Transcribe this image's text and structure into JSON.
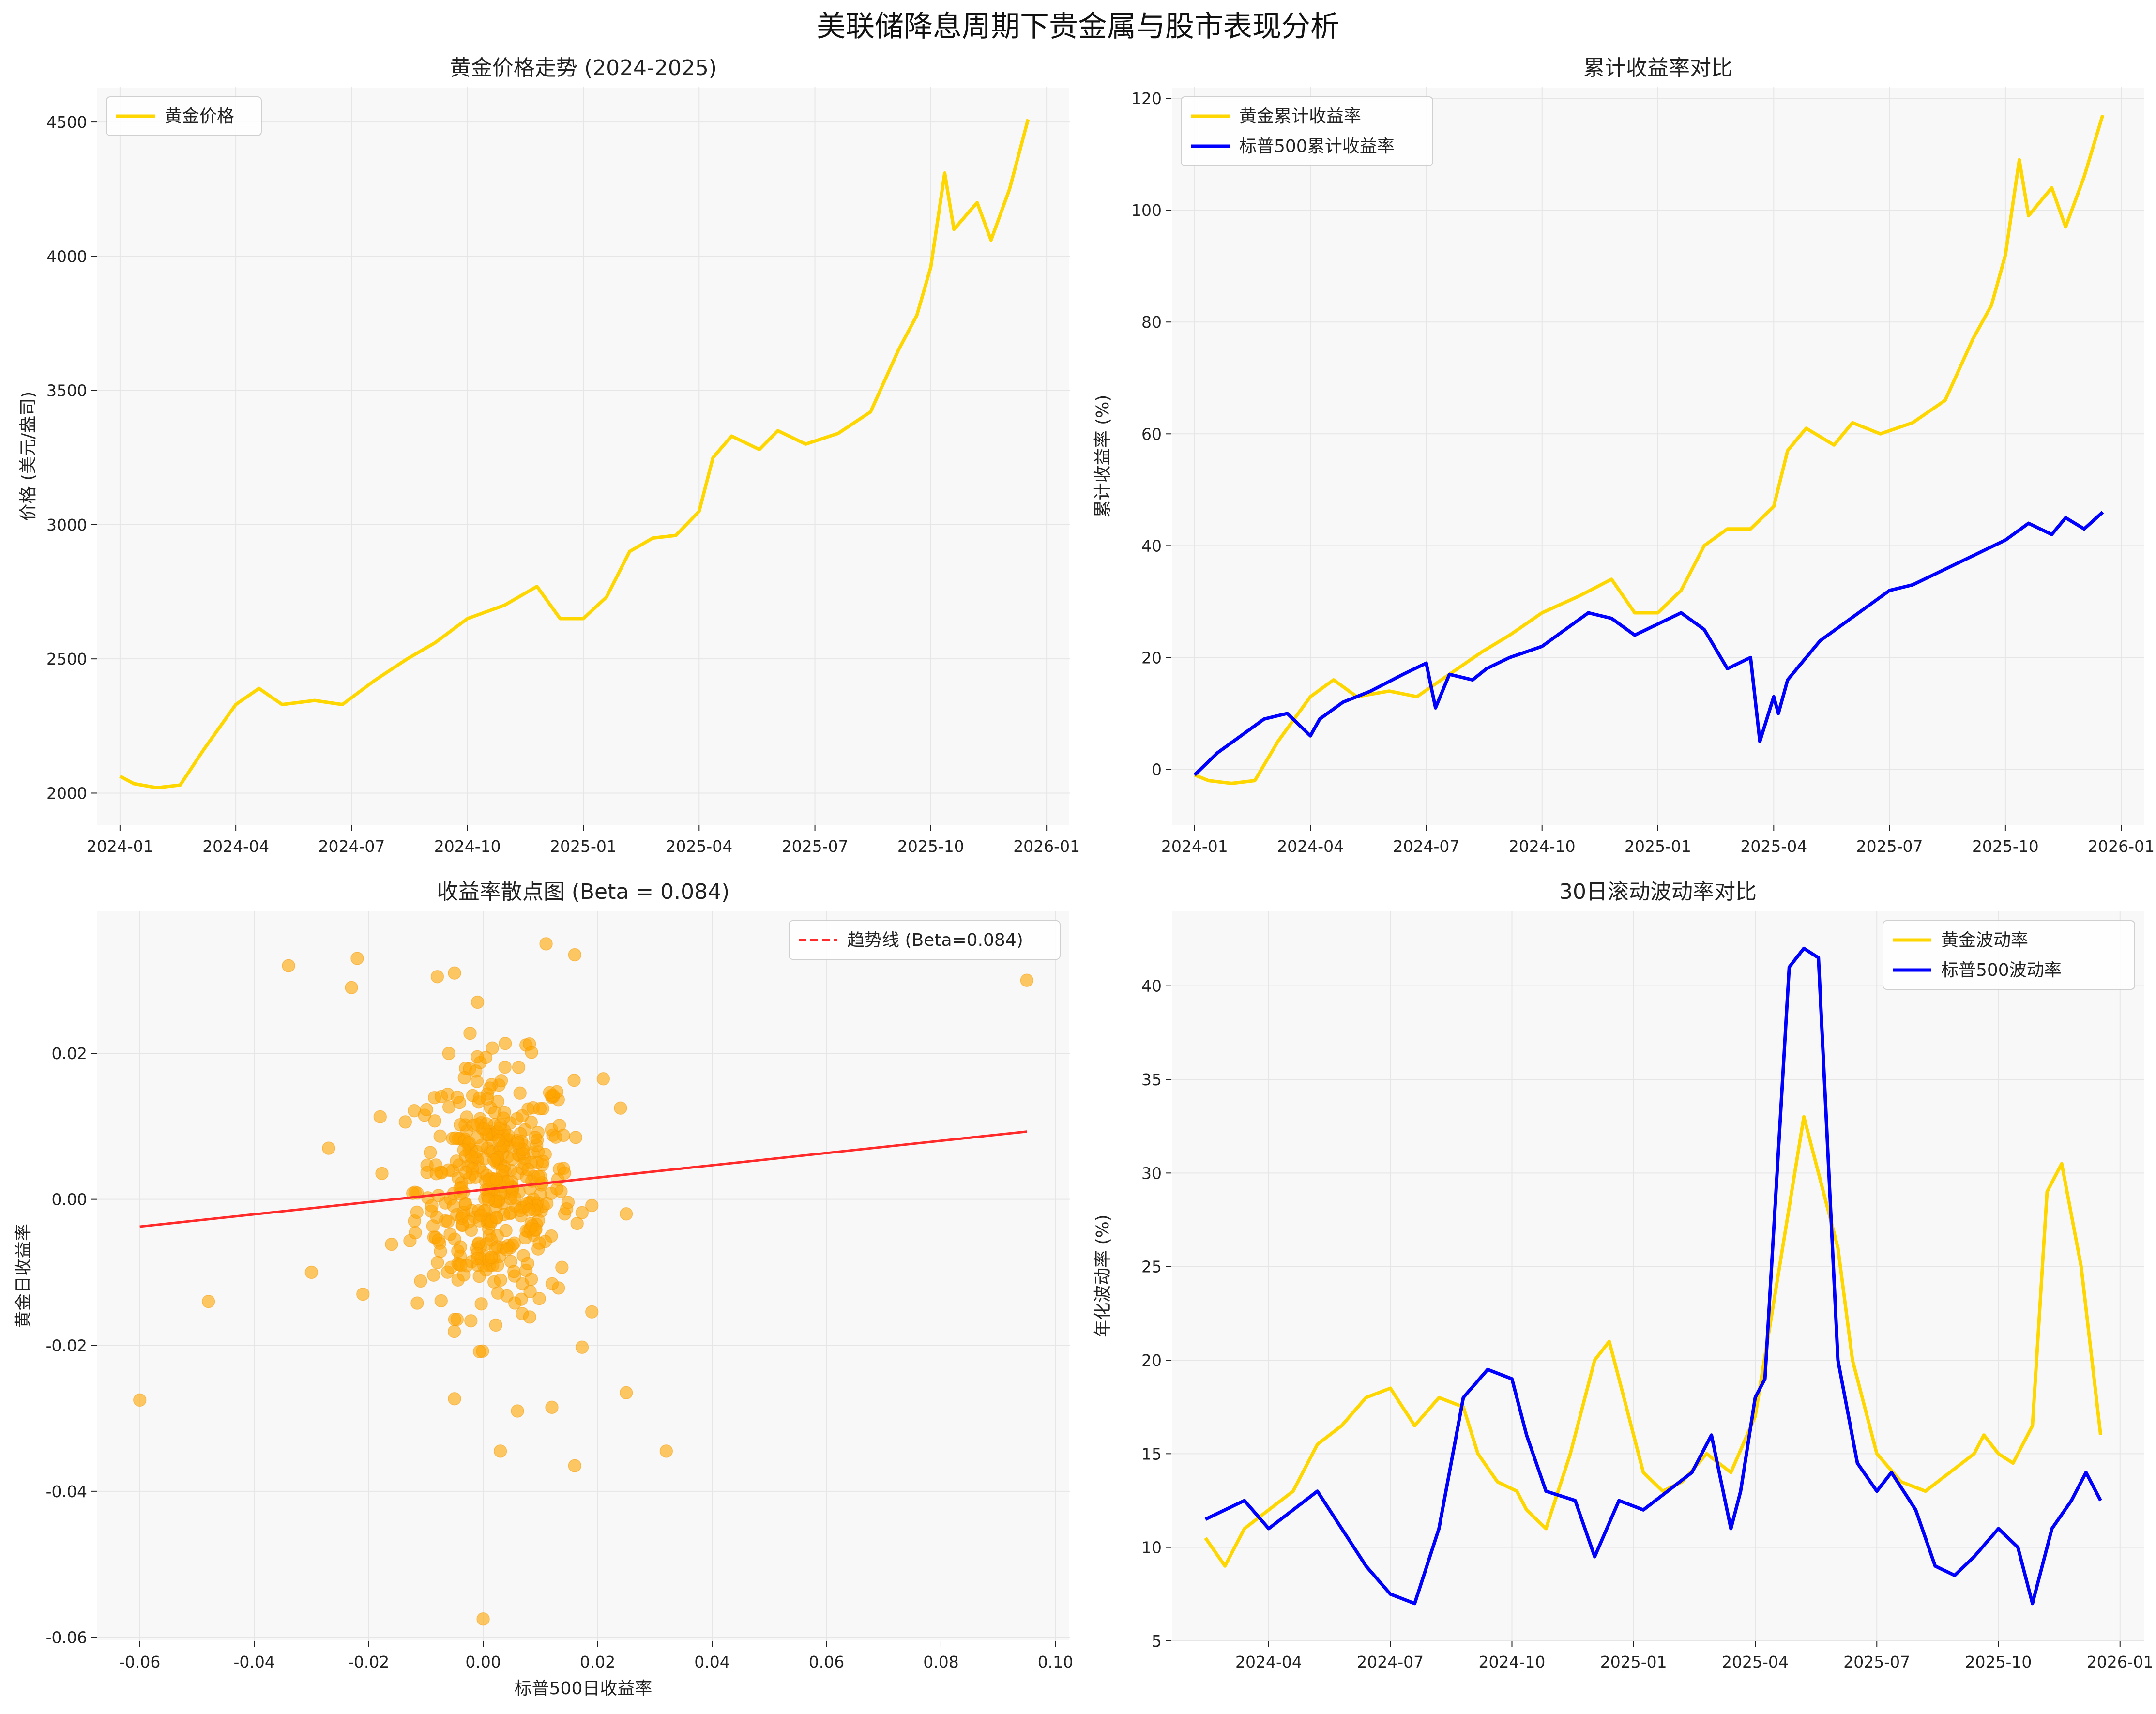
{
  "suptitle": "美联储降息周期下贵金属与股市表现分析",
  "chart_data": [
    {
      "id": "gold-price",
      "type": "line",
      "title": "黄金价格走势 (2024-2025)",
      "xlabel": "",
      "ylabel": "价格 (美元/盎司)",
      "x_ticks": [
        "2024-01",
        "2024-04",
        "2024-07",
        "2024-10",
        "2025-01",
        "2025-04",
        "2025-07",
        "2025-10",
        "2026-01"
      ],
      "y_ticks": [
        2000,
        2500,
        3000,
        3500,
        4000,
        4500
      ],
      "ylim": [
        1880,
        4630
      ],
      "grid": true,
      "legend": "top-left",
      "series": [
        {
          "name": "黄金价格",
          "color": "#FFD700",
          "x": [
            2024.0,
            2024.03,
            2024.08,
            2024.13,
            2024.18,
            2024.25,
            2024.3,
            2024.35,
            2024.42,
            2024.48,
            2024.55,
            2024.62,
            2024.68,
            2024.75,
            2024.83,
            2024.9,
            2024.95,
            2025.0,
            2025.05,
            2025.1,
            2025.15,
            2025.2,
            2025.25,
            2025.28,
            2025.32,
            2025.38,
            2025.42,
            2025.48,
            2025.55,
            2025.62,
            2025.68,
            2025.72,
            2025.75,
            2025.78,
            2025.8,
            2025.85,
            2025.88,
            2025.92,
            2025.96
          ],
          "y": [
            2063,
            2035,
            2020,
            2030,
            2160,
            2330,
            2390,
            2330,
            2345,
            2330,
            2420,
            2500,
            2560,
            2650,
            2700,
            2770,
            2650,
            2650,
            2730,
            2900,
            2950,
            2960,
            3050,
            3250,
            3330,
            3280,
            3350,
            3300,
            3340,
            3420,
            3650,
            3780,
            3960,
            4310,
            4100,
            4200,
            4060,
            4250,
            4510
          ]
        }
      ]
    },
    {
      "id": "cumulative-returns",
      "type": "line",
      "title": "累计收益率对比",
      "xlabel": "",
      "ylabel": "累计收益率 (%)",
      "x_ticks": [
        "2024-01",
        "2024-04",
        "2024-07",
        "2024-10",
        "2025-01",
        "2025-04",
        "2025-07",
        "2025-10",
        "2026-01"
      ],
      "y_ticks": [
        0,
        20,
        40,
        60,
        80,
        100,
        120
      ],
      "ylim": [
        -10,
        122
      ],
      "grid": true,
      "legend": "top-left",
      "series": [
        {
          "name": "黄金累计收益率",
          "color": "#FFD700",
          "x": [
            2024.0,
            2024.03,
            2024.08,
            2024.13,
            2024.18,
            2024.25,
            2024.3,
            2024.35,
            2024.42,
            2024.48,
            2024.55,
            2024.62,
            2024.68,
            2024.75,
            2024.83,
            2024.9,
            2024.95,
            2025.0,
            2025.05,
            2025.1,
            2025.15,
            2025.2,
            2025.25,
            2025.28,
            2025.32,
            2025.38,
            2025.42,
            2025.48,
            2025.55,
            2025.62,
            2025.68,
            2025.72,
            2025.75,
            2025.78,
            2025.8,
            2025.85,
            2025.88,
            2025.92,
            2025.96
          ],
          "y": [
            -1,
            -2,
            -2.5,
            -2,
            5,
            13,
            16,
            13,
            14,
            13,
            17,
            21,
            24,
            28,
            31,
            34,
            28,
            28,
            32,
            40,
            43,
            43,
            47,
            57,
            61,
            58,
            62,
            60,
            62,
            66,
            77,
            83,
            92,
            109,
            99,
            104,
            97,
            106,
            117
          ]
        },
        {
          "name": "标普500累计收益率",
          "color": "#0000FF",
          "x": [
            2024.0,
            2024.05,
            2024.1,
            2024.15,
            2024.2,
            2024.25,
            2024.27,
            2024.32,
            2024.38,
            2024.45,
            2024.5,
            2024.52,
            2024.55,
            2024.6,
            2024.63,
            2024.68,
            2024.75,
            2024.8,
            2024.85,
            2024.9,
            2024.95,
            2025.0,
            2025.05,
            2025.1,
            2025.15,
            2025.2,
            2025.22,
            2025.25,
            2025.26,
            2025.28,
            2025.3,
            2025.35,
            2025.4,
            2025.45,
            2025.5,
            2025.55,
            2025.6,
            2025.65,
            2025.7,
            2025.75,
            2025.8,
            2025.85,
            2025.88,
            2025.92,
            2025.96
          ],
          "y": [
            -1,
            3,
            6,
            9,
            10,
            6,
            9,
            12,
            14,
            17,
            19,
            11,
            17,
            16,
            18,
            20,
            22,
            25,
            28,
            27,
            24,
            26,
            28,
            25,
            18,
            20,
            5,
            13,
            10,
            16,
            18,
            23,
            26,
            29,
            32,
            33,
            35,
            37,
            39,
            41,
            44,
            42,
            45,
            43,
            46
          ]
        }
      ]
    },
    {
      "id": "returns-scatter",
      "type": "scatter",
      "title": "收益率散点图 (Beta = 0.084)",
      "xlabel": "标普500日收益率",
      "ylabel": "黄金日收益率",
      "x_ticks": [
        "-0.06",
        "-0.04",
        "-0.02",
        "0.00",
        "0.02",
        "0.04",
        "0.06",
        "0.08",
        "0.10"
      ],
      "y_ticks": [
        "-0.06",
        "-0.04",
        "-0.02",
        "0.00",
        "0.02"
      ],
      "xlim": [
        -0.0675,
        0.1025
      ],
      "ylim": [
        -0.0605,
        0.0395
      ],
      "grid": true,
      "legend": "top-right",
      "trendline": {
        "name": "趋势线 (Beta=0.084)",
        "color": "#FF2A2A",
        "slope": 0.084,
        "intercept": 0.0013,
        "x_range": [
          -0.06,
          0.095
        ]
      },
      "point_color": "#FFA500",
      "outliers": [
        [
          -0.06,
          -0.0275
        ],
        [
          -0.048,
          -0.014
        ],
        [
          -0.034,
          0.032
        ],
        [
          -0.03,
          -0.01
        ],
        [
          -0.022,
          0.033
        ],
        [
          -0.023,
          0.029
        ],
        [
          -0.027,
          0.007
        ],
        [
          -0.021,
          -0.013
        ],
        [
          0.095,
          0.03
        ],
        [
          0.032,
          -0.0345
        ],
        [
          0.025,
          -0.0265
        ],
        [
          0.0,
          -0.0575
        ],
        [
          0.016,
          -0.0365
        ],
        [
          0.011,
          0.035
        ],
        [
          0.016,
          0.0335
        ],
        [
          -0.008,
          0.0305
        ],
        [
          -0.005,
          0.031
        ],
        [
          0.024,
          0.0125
        ],
        [
          0.021,
          0.0165
        ],
        [
          0.025,
          -0.002
        ],
        [
          0.003,
          -0.0345
        ],
        [
          0.006,
          -0.029
        ],
        [
          0.012,
          -0.0285
        ]
      ],
      "cluster_points": 420
    },
    {
      "id": "rolling-volatility",
      "type": "line",
      "title": "30日滚动波动率对比",
      "xlabel": "",
      "ylabel": "年化波动率 (%)",
      "x_ticks": [
        "2024-04",
        "2024-07",
        "2024-10",
        "2025-01",
        "2025-04",
        "2025-07",
        "2025-10",
        "2026-01"
      ],
      "y_ticks": [
        5,
        10,
        15,
        20,
        25,
        30,
        35,
        40
      ],
      "ylim": [
        5,
        44
      ],
      "grid": true,
      "legend": "top-right",
      "series": [
        {
          "name": "黄金波动率",
          "color": "#FFD700",
          "x": [
            2024.12,
            2024.16,
            2024.2,
            2024.25,
            2024.3,
            2024.35,
            2024.4,
            2024.45,
            2024.5,
            2024.55,
            2024.6,
            2024.65,
            2024.68,
            2024.72,
            2024.76,
            2024.78,
            2024.82,
            2024.87,
            2024.92,
            2024.95,
            2024.98,
            2025.02,
            2025.06,
            2025.1,
            2025.15,
            2025.2,
            2025.25,
            2025.3,
            2025.35,
            2025.38,
            2025.42,
            2025.45,
            2025.5,
            2025.55,
            2025.6,
            2025.65,
            2025.7,
            2025.72,
            2025.75,
            2025.78,
            2025.82,
            2025.85,
            2025.88,
            2025.92,
            2025.96
          ],
          "y": [
            10.5,
            9,
            11,
            12,
            13,
            15.5,
            16.5,
            18,
            18.5,
            16.5,
            18,
            17.5,
            15,
            13.5,
            13,
            12,
            11,
            15,
            20,
            21,
            18,
            14,
            13,
            13.5,
            15,
            14,
            17,
            25,
            33,
            30,
            26,
            20,
            15,
            13.5,
            13,
            14,
            15,
            16,
            15,
            14.5,
            16.5,
            29,
            30.5,
            25,
            16
          ]
        },
        {
          "name": "标普500波动率",
          "color": "#0000FF",
          "x": [
            2024.12,
            2024.16,
            2024.2,
            2024.25,
            2024.3,
            2024.35,
            2024.4,
            2024.45,
            2024.5,
            2024.55,
            2024.6,
            2024.65,
            2024.7,
            2024.75,
            2024.78,
            2024.82,
            2024.88,
            2024.92,
            2024.97,
            2025.02,
            2025.07,
            2025.12,
            2025.16,
            2025.2,
            2025.22,
            2025.25,
            2025.27,
            2025.32,
            2025.35,
            2025.38,
            2025.42,
            2025.46,
            2025.5,
            2025.53,
            2025.58,
            2025.62,
            2025.66,
            2025.7,
            2025.75,
            2025.79,
            2025.82,
            2025.86,
            2025.9,
            2025.93,
            2025.96
          ],
          "y": [
            11.5,
            12,
            12.5,
            11,
            12,
            13,
            11,
            9,
            7.5,
            7,
            11,
            18,
            19.5,
            19,
            16,
            13,
            12.5,
            9.5,
            12.5,
            12,
            13,
            14,
            16,
            11,
            13,
            18,
            19,
            41,
            42,
            41.5,
            20,
            14.5,
            13,
            14,
            12,
            9,
            8.5,
            9.5,
            11,
            10,
            7,
            11,
            12.5,
            14,
            12.5
          ]
        }
      ]
    }
  ]
}
